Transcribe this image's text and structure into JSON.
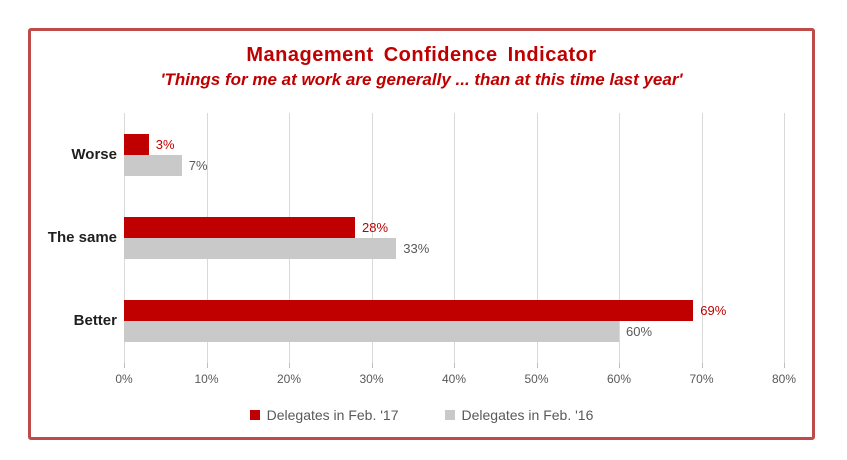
{
  "chart": {
    "title": "Management Confidence Indicator",
    "subtitle": "'Things for me at work are generally ... than at this time last year'",
    "border_color": "#be4b48",
    "grid_color": "#d9d9d9",
    "axis_text_color": "#595959",
    "category_text_color": "#1f1f1f"
  },
  "chart_data": {
    "type": "bar",
    "orientation": "horizontal",
    "title": "Management Confidence Indicator",
    "subtitle": "'Things for me at work are generally ... than at this time last year'",
    "categories": [
      "Worse",
      "The same",
      "Better"
    ],
    "series": [
      {
        "name": "Delegates in Feb. '17",
        "color": "#c00000",
        "label_color": "#c00000",
        "values": [
          3,
          28,
          69
        ]
      },
      {
        "name": "Delegates in Feb. '16",
        "color": "#c9c9c9",
        "label_color": "#595959",
        "values": [
          7,
          33,
          60
        ]
      }
    ],
    "x_ticks": [
      "0%",
      "10%",
      "20%",
      "30%",
      "40%",
      "50%",
      "60%",
      "70%",
      "80%"
    ],
    "xlim": [
      0,
      80
    ],
    "grid": true,
    "legend_position": "bottom",
    "data_labels": true
  }
}
